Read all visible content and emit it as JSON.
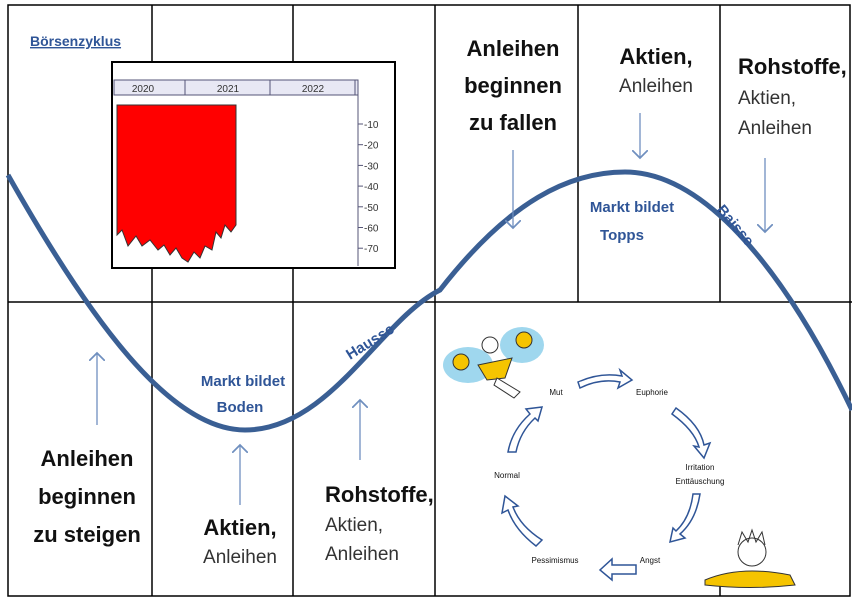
{
  "title": "Börsenzyklus",
  "inset": {
    "xlabels": [
      "2020",
      "2021",
      "2022"
    ],
    "ylabels": [
      "-10",
      "-20",
      "-30",
      "-40",
      "-50",
      "-60",
      "-70"
    ]
  },
  "top": [
    {
      "bold": [
        "Anleihen",
        "beginnen",
        "zu  fallen"
      ],
      "normal": []
    },
    {
      "bold": [
        "Aktien,"
      ],
      "normal": [
        "Anleihen"
      ]
    },
    {
      "bold": [
        "Rohstoffe,"
      ],
      "normal": [
        "Aktien,",
        "Anleihen"
      ]
    }
  ],
  "bottom": [
    {
      "bold": [
        "Anleihen",
        "beginnen",
        "zu steigen"
      ],
      "normal": []
    },
    {
      "bold": [
        "Aktien,"
      ],
      "normal": [
        "Anleihen"
      ]
    },
    {
      "bold": [
        "Rohstoffe,"
      ],
      "normal": [
        "Aktien,",
        "Anleihen"
      ]
    }
  ],
  "curve_labels": {
    "top_market": [
      "Markt bildet",
      "Topps"
    ],
    "baisse": "Baisse",
    "hausse": "Hausse",
    "bottom_market": [
      "Markt bildet",
      "Boden"
    ]
  },
  "cycle": [
    "Mut",
    "Euphorie",
    "Irritation",
    "Enttäuschung",
    "Angst",
    "Pessimismus",
    "Normal"
  ]
}
